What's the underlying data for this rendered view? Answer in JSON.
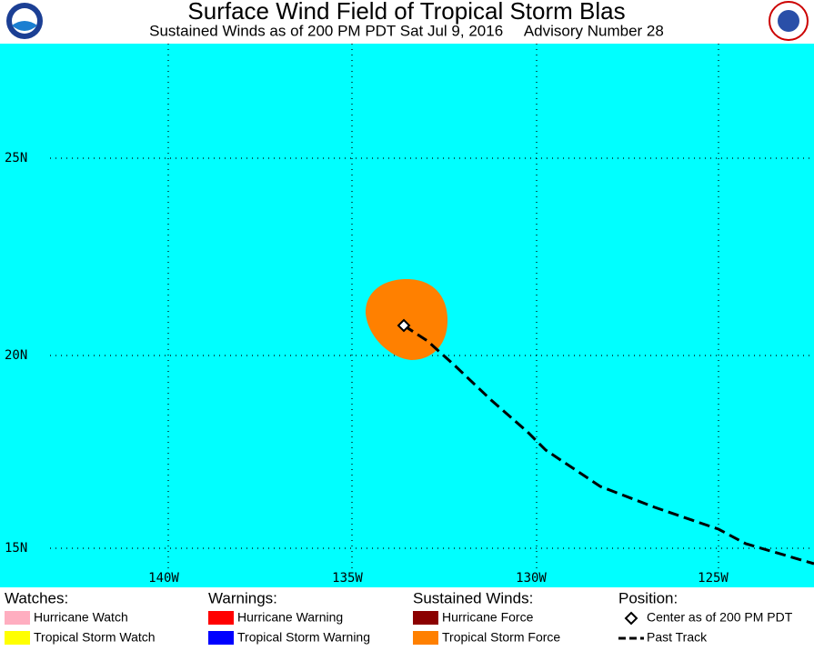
{
  "header": {
    "title": "Surface Wind Field of Tropical Storm Blas",
    "subtitle": "Sustained Winds as of 200 PM PDT Sat Jul 9, 2016     Advisory Number 28"
  },
  "map": {
    "latitude_labels": [
      "25N",
      "20N",
      "15N"
    ],
    "longitude_labels": [
      "140W",
      "135W",
      "130W",
      "125W"
    ]
  },
  "legend": [
    {
      "heading": "Watches:",
      "items": [
        "Hurricane Watch",
        "Tropical Storm Watch"
      ]
    },
    {
      "heading": "Warnings:",
      "items": [
        "Hurricane Warning",
        "Tropical Storm Warning"
      ]
    },
    {
      "heading": "Sustained Winds:",
      "items": [
        "Hurricane Force",
        "Tropical Storm Force"
      ]
    },
    {
      "heading": "Position:",
      "items": [
        "Center as of 200 PM PDT",
        "Past Track"
      ]
    }
  ]
}
